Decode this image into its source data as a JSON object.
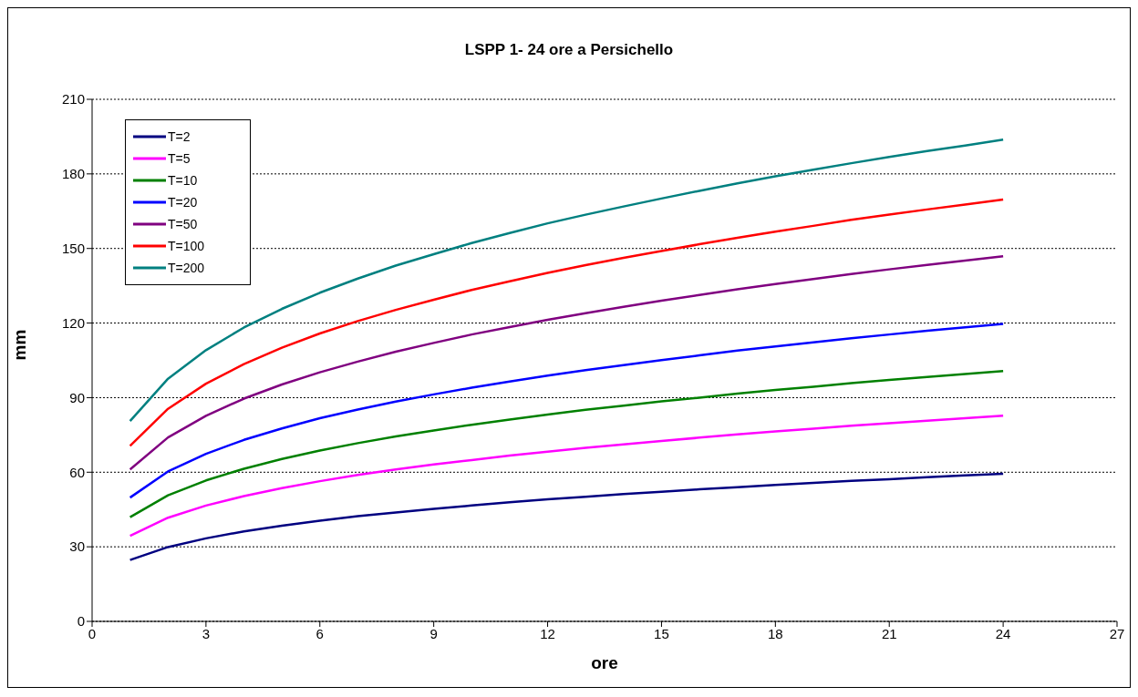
{
  "chart_data": {
    "type": "line",
    "title": "LSPP 1- 24 ore a Persichello",
    "xlabel": "ore",
    "ylabel": "mm",
    "x": [
      1,
      2,
      3,
      4,
      5,
      6,
      7,
      8,
      9,
      10,
      11,
      12,
      13,
      14,
      15,
      16,
      17,
      18,
      19,
      20,
      21,
      22,
      23,
      24
    ],
    "xlim": [
      0,
      27
    ],
    "xticks": [
      0,
      3,
      6,
      9,
      12,
      15,
      18,
      21,
      24,
      27
    ],
    "ylim": [
      0,
      210
    ],
    "yticks": [
      0,
      30,
      60,
      90,
      120,
      150,
      180,
      210
    ],
    "grid": "y",
    "legend": "top left",
    "marker": "none",
    "line_style": "solid",
    "series": [
      {
        "name": "T=2",
        "color": "#000080",
        "values": [
          24.7,
          29.9,
          33.4,
          36.2,
          38.5,
          40.5,
          42.3,
          43.8,
          45.3,
          46.6,
          47.9,
          49.1,
          50.1,
          51.2,
          52.1,
          53.1,
          54.0,
          54.9,
          55.7,
          56.5,
          57.2,
          58.0,
          58.7,
          59.4
        ]
      },
      {
        "name": "T=5",
        "color": "#ff00ff",
        "values": [
          34.4,
          41.7,
          46.6,
          50.4,
          53.6,
          56.4,
          58.9,
          61.1,
          63.1,
          64.9,
          66.7,
          68.3,
          69.8,
          71.2,
          72.6,
          73.9,
          75.2,
          76.4,
          77.5,
          78.7,
          79.7,
          80.7,
          81.7,
          82.7
        ]
      },
      {
        "name": "T=10",
        "color": "#008000",
        "values": [
          41.9,
          50.7,
          56.7,
          61.4,
          65.3,
          68.7,
          71.7,
          74.4,
          76.8,
          79.1,
          81.2,
          83.2,
          85.1,
          86.8,
          88.5,
          90.0,
          91.6,
          93.1,
          94.4,
          95.8,
          97.1,
          98.3,
          99.5,
          100.7
        ]
      },
      {
        "name": "T=20",
        "color": "#0000ff",
        "values": [
          49.8,
          60.3,
          67.4,
          73.0,
          77.6,
          81.7,
          85.2,
          88.4,
          91.3,
          94.0,
          96.5,
          98.9,
          101.1,
          103.1,
          105.1,
          107.0,
          108.9,
          110.6,
          112.2,
          113.9,
          115.4,
          116.9,
          118.3,
          119.7
        ]
      },
      {
        "name": "T=50",
        "color": "#800080",
        "values": [
          61.1,
          74.0,
          82.7,
          89.6,
          95.3,
          100.2,
          104.5,
          108.5,
          112.0,
          115.4,
          118.4,
          121.3,
          124.0,
          126.5,
          129.0,
          131.3,
          133.6,
          135.7,
          137.7,
          139.7,
          141.6,
          143.4,
          145.1,
          146.9
        ]
      },
      {
        "name": "T=100",
        "color": "#ff0000",
        "values": [
          70.6,
          85.5,
          95.6,
          103.5,
          110.1,
          115.8,
          120.8,
          125.3,
          129.4,
          133.3,
          136.8,
          140.2,
          143.3,
          146.2,
          149.0,
          151.7,
          154.3,
          156.8,
          159.1,
          161.5,
          163.6,
          165.7,
          167.7,
          169.7
        ]
      },
      {
        "name": "T=200",
        "color": "#008080",
        "values": [
          80.6,
          97.6,
          109.1,
          118.2,
          125.7,
          132.2,
          137.9,
          143.1,
          147.7,
          152.2,
          156.2,
          160.1,
          163.6,
          166.9,
          170.1,
          173.2,
          176.2,
          179.0,
          181.7,
          184.3,
          186.8,
          189.2,
          191.4,
          193.8
        ]
      }
    ]
  }
}
